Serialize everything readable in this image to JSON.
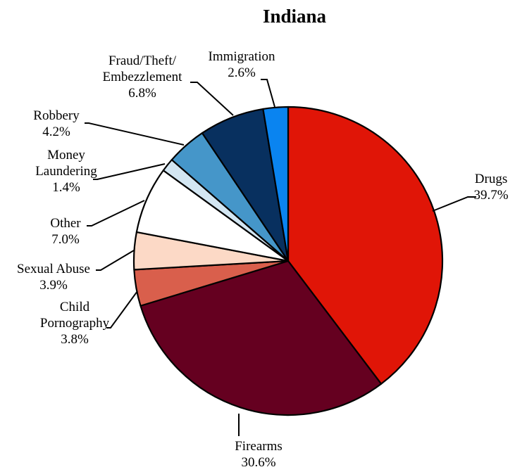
{
  "chart_data": {
    "type": "pie",
    "title": "Indiana",
    "slices": [
      {
        "label": [
          "Drugs"
        ],
        "value": 39.7,
        "display": "39.7%",
        "color": "#e01507"
      },
      {
        "label": [
          "Firearms"
        ],
        "value": 30.6,
        "display": "30.6%",
        "color": "#650020"
      },
      {
        "label": [
          "Child",
          "Pornography"
        ],
        "value": 3.8,
        "display": "3.8%",
        "color": "#d95f4c"
      },
      {
        "label": [
          "Sexual Abuse"
        ],
        "value": 3.9,
        "display": "3.9%",
        "color": "#fcd9c6"
      },
      {
        "label": [
          "Other"
        ],
        "value": 7.0,
        "display": "7.0%",
        "color": "#ffffff"
      },
      {
        "label": [
          "Money",
          "Laundering"
        ],
        "value": 1.4,
        "display": "1.4%",
        "color": "#d3e6f2"
      },
      {
        "label": [
          "Robbery"
        ],
        "value": 4.2,
        "display": "4.2%",
        "color": "#4596c9"
      },
      {
        "label": [
          "Fraud/Theft/",
          "Embezzlement"
        ],
        "value": 6.8,
        "display": "6.8%",
        "color": "#08305f"
      },
      {
        "label": [
          "Immigration"
        ],
        "value": 2.6,
        "display": "2.6%",
        "color": "#0a84f0"
      }
    ],
    "start": "12 o'clock",
    "direction": "clockwise",
    "legend": "none"
  }
}
